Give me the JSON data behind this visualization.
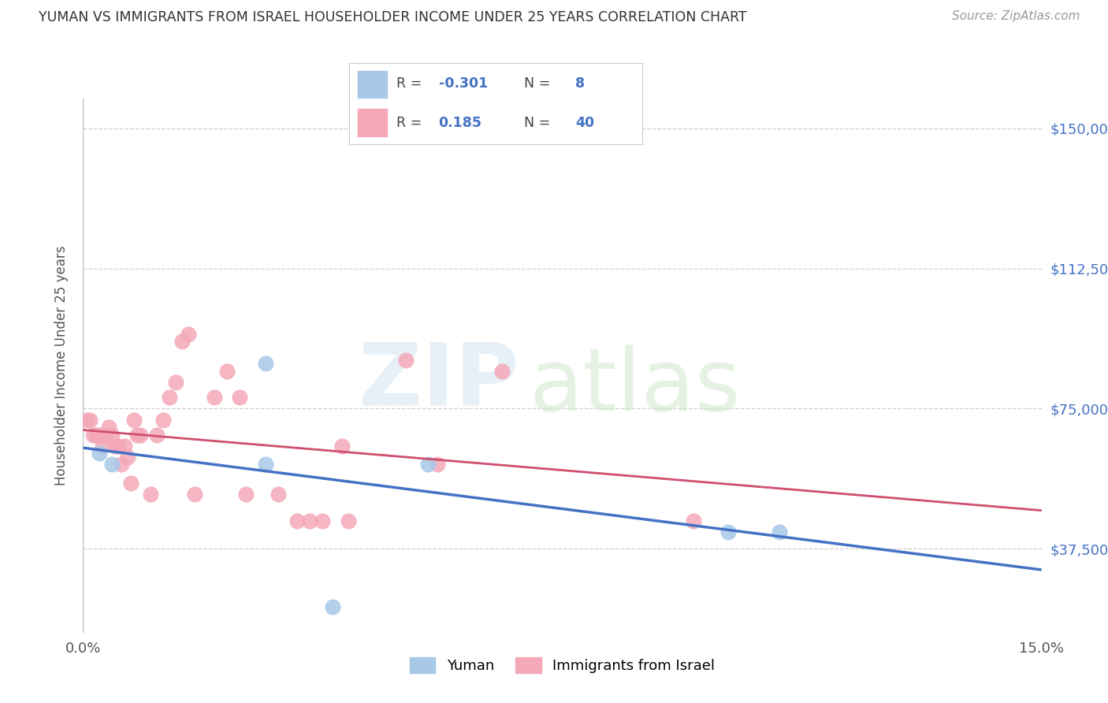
{
  "title": "YUMAN VS IMMIGRANTS FROM ISRAEL HOUSEHOLDER INCOME UNDER 25 YEARS CORRELATION CHART",
  "source": "Source: ZipAtlas.com",
  "ylabel": "Householder Income Under 25 years",
  "ytick_labels": [
    "$150,000",
    "$112,500",
    "$75,000",
    "$37,500"
  ],
  "ytick_values": [
    150000,
    112500,
    75000,
    37500
  ],
  "xmin": 0.0,
  "xmax": 15.0,
  "ymin": 15000,
  "ymax": 158000,
  "legend_label_blue": "Yuman",
  "legend_label_pink": "Immigrants from Israel",
  "blue_color": "#a8c8e8",
  "pink_color": "#f4a8b8",
  "blue_line_color": "#4472c4",
  "pink_line_color": "#d05070",
  "blue_r_color": "#4472c4",
  "blue_scatter": [
    [
      0.25,
      63000
    ],
    [
      0.45,
      60000
    ],
    [
      2.85,
      87000
    ],
    [
      2.85,
      60000
    ],
    [
      5.4,
      60000
    ],
    [
      3.9,
      22000
    ],
    [
      10.1,
      42000
    ],
    [
      10.9,
      42000
    ]
  ],
  "pink_scatter": [
    [
      0.05,
      72000
    ],
    [
      0.1,
      72000
    ],
    [
      0.15,
      68000
    ],
    [
      0.2,
      68000
    ],
    [
      0.25,
      68000
    ],
    [
      0.3,
      65000
    ],
    [
      0.35,
      68000
    ],
    [
      0.4,
      70000
    ],
    [
      0.45,
      68000
    ],
    [
      0.5,
      65000
    ],
    [
      0.55,
      65000
    ],
    [
      0.6,
      60000
    ],
    [
      0.65,
      65000
    ],
    [
      0.7,
      62000
    ],
    [
      0.75,
      55000
    ],
    [
      0.8,
      72000
    ],
    [
      0.85,
      68000
    ],
    [
      0.9,
      68000
    ],
    [
      1.05,
      52000
    ],
    [
      1.15,
      68000
    ],
    [
      1.25,
      72000
    ],
    [
      1.35,
      78000
    ],
    [
      1.45,
      82000
    ],
    [
      1.55,
      93000
    ],
    [
      1.65,
      95000
    ],
    [
      1.75,
      52000
    ],
    [
      2.05,
      78000
    ],
    [
      2.25,
      85000
    ],
    [
      2.45,
      78000
    ],
    [
      2.55,
      52000
    ],
    [
      3.05,
      52000
    ],
    [
      3.35,
      45000
    ],
    [
      3.55,
      45000
    ],
    [
      3.75,
      45000
    ],
    [
      4.05,
      65000
    ],
    [
      4.15,
      45000
    ],
    [
      5.05,
      88000
    ],
    [
      5.55,
      60000
    ],
    [
      6.55,
      85000
    ],
    [
      9.55,
      45000
    ]
  ]
}
